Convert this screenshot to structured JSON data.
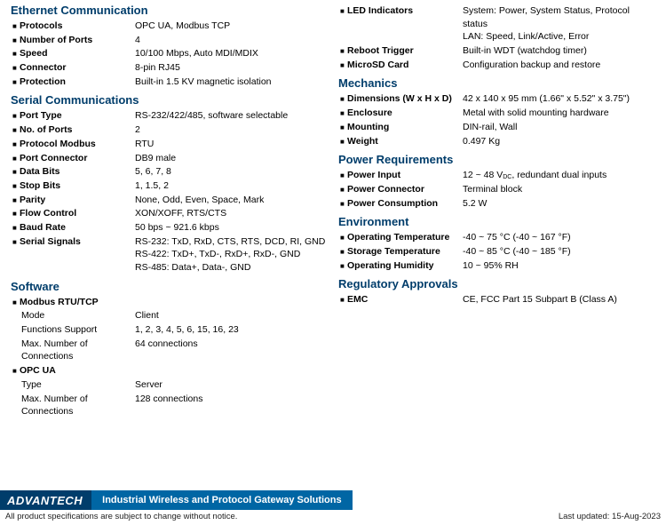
{
  "left": {
    "sec1": {
      "title": "Ethernet Communication",
      "rows": [
        {
          "label": "Protocols",
          "value": "OPC UA, Modbus TCP"
        },
        {
          "label": "Number of Ports",
          "value": "4"
        },
        {
          "label": "Speed",
          "value": "10/100 Mbps, Auto MDI/MDIX"
        },
        {
          "label": "Connector",
          "value": "8-pin RJ45"
        },
        {
          "label": "Protection",
          "value": "Built-in 1.5 KV magnetic isolation"
        }
      ]
    },
    "sec2": {
      "title": "Serial Communications",
      "rows": [
        {
          "label": "Port Type",
          "value": "RS-232/422/485, software selectable"
        },
        {
          "label": "No. of Ports",
          "value": "2"
        },
        {
          "label": "Protocol Modbus",
          "value": "RTU"
        },
        {
          "label": "Port Connector",
          "value": "DB9 male"
        },
        {
          "label": "Data Bits",
          "value": "5, 6, 7, 8"
        },
        {
          "label": "Stop Bits",
          "value": "1, 1.5, 2"
        },
        {
          "label": "Parity",
          "value": "None, Odd, Even, Space, Mark"
        },
        {
          "label": "Flow Control",
          "value": "XON/XOFF, RTS/CTS"
        },
        {
          "label": "Baud Rate",
          "value": "50 bps ~ 921.6 kbps"
        },
        {
          "label": "Serial Signals",
          "value": "RS-232: TxD, RxD, CTS, RTS, DCD, RI, GND\nRS-422: TxD+, TxD-, RxD+, RxD-, GND\nRS-485: Data+, Data-, GND"
        }
      ]
    },
    "sec3": {
      "title": "Software",
      "groups": [
        {
          "heading": "Modbus RTU/TCP",
          "rows": [
            {
              "label": "Mode",
              "value": "Client"
            },
            {
              "label": "Functions Support",
              "value": "1, 2, 3, 4, 5, 6, 15, 16, 23"
            },
            {
              "label": "Max. Number of Connections",
              "value": "64 connections"
            }
          ]
        },
        {
          "heading": "OPC UA",
          "rows": [
            {
              "label": "Type",
              "value": "Server"
            },
            {
              "label": "Max. Number of Connections",
              "value": "128 connections"
            }
          ]
        }
      ]
    }
  },
  "right": {
    "sec0": {
      "rows": [
        {
          "label": "LED Indicators",
          "value": "System: Power, System Status, Protocol status\nLAN: Speed, Link/Active, Error"
        },
        {
          "label": "Reboot Trigger",
          "value": "Built-in WDT (watchdog timer)"
        },
        {
          "label": "MicroSD Card",
          "value": "Configuration backup and restore"
        }
      ]
    },
    "sec1": {
      "title": "Mechanics",
      "rows": [
        {
          "label": "Dimensions (W x H x D)",
          "value": "42 x 140 x 95 mm (1.66\" x 5.52\" x 3.75\")"
        },
        {
          "label": "Enclosure",
          "value": "Metal with solid mounting hardware"
        },
        {
          "label": "Mounting",
          "value": "DIN-rail, Wall"
        },
        {
          "label": "Weight",
          "value": "0.497 Kg"
        }
      ]
    },
    "sec2": {
      "title": "Power Requirements",
      "rows": [
        {
          "label": "Power Input",
          "value": "12 ~ 48 V<sub>DC</sub>, redundant dual inputs",
          "html": true
        },
        {
          "label": "Power Connector",
          "value": "Terminal block"
        },
        {
          "label": "Power Consumption",
          "value": "5.2 W"
        }
      ]
    },
    "sec3": {
      "title": "Environment",
      "rows": [
        {
          "label": "Operating Temperature",
          "value": "-40 ~ 75 °C (-40 ~ 167 °F)"
        },
        {
          "label": "Storage Temperature",
          "value": "-40 ~ 85 °C (-40 ~ 185 °F)"
        },
        {
          "label": "Operating Humidity",
          "value": "10 ~ 95% RH"
        }
      ]
    },
    "sec4": {
      "title": "Regulatory Approvals",
      "rows": [
        {
          "label": "EMC",
          "value": "CE, FCC Part 15 Subpart B (Class A)"
        }
      ]
    }
  },
  "footer": {
    "logo": "ADVANTECH",
    "tagline": "Industrial Wireless and Protocol Gateway Solutions",
    "disclaimer": "All product specifications are subject to change without notice.",
    "updated": "Last updated: 15-Aug-2023"
  }
}
